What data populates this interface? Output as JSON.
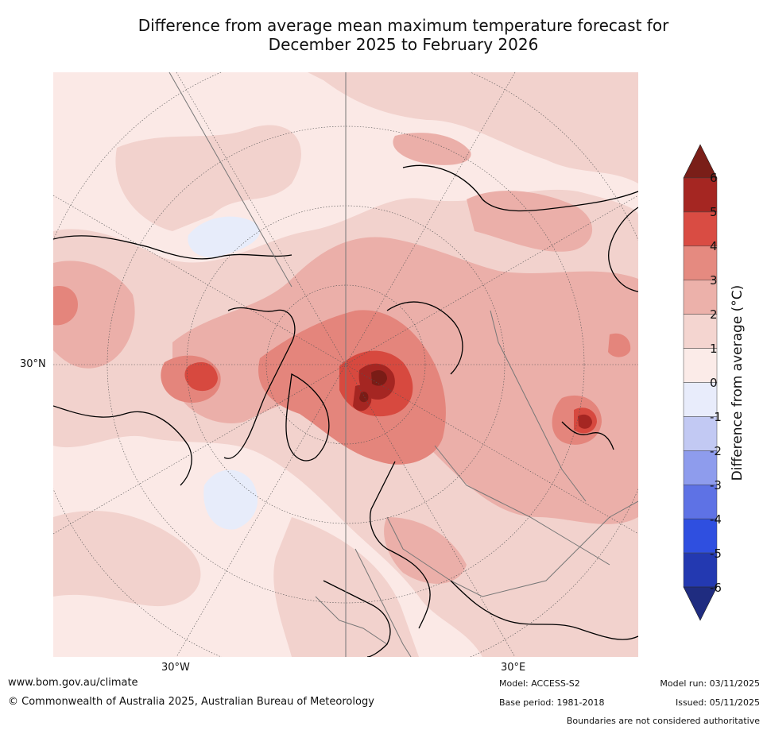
{
  "title": {
    "line1": "Difference from average mean maximum temperature forecast for",
    "line2": "December 2025 to February 2026"
  },
  "map": {
    "projection": "North Polar Stereographic",
    "lat_label": "30°N",
    "lon_labels": [
      "30°W",
      "30°E"
    ],
    "colors": {
      "ocean_base": "#fbe9e6",
      "band_0_1": "#fbeae7",
      "band_1_2": "#f2d2cd",
      "band_2_3": "#ebafa9",
      "band_3_4": "#e4857c",
      "band_4_5": "#d7493f",
      "band_5_6": "#a52622",
      "band_6p": "#7a1c16",
      "band_m1_0": "#e7ecfa",
      "coast": "#000000",
      "border": "#777777",
      "grid": "#444444"
    }
  },
  "colorbar": {
    "title": "Difference from average (°C)",
    "ticks": [
      "6",
      "5",
      "4",
      "3",
      "2",
      "1",
      "0",
      "-1",
      "-2",
      "-3",
      "-4",
      "-5",
      "-6"
    ],
    "bands": [
      {
        "range": "5 to 6",
        "color": "#a52622"
      },
      {
        "range": "4 to 5",
        "color": "#d94c43"
      },
      {
        "range": "3 to 4",
        "color": "#e58a80"
      },
      {
        "range": "2 to 3",
        "color": "#ecb1aa"
      },
      {
        "range": "1 to 2",
        "color": "#f4d5d0"
      },
      {
        "range": "0 to 1",
        "color": "#fbebe8"
      },
      {
        "range": "-1 to 0",
        "color": "#e8ecfb"
      },
      {
        "range": "-2 to -1",
        "color": "#c2c9f3"
      },
      {
        "range": "-3 to -2",
        "color": "#8e9ced"
      },
      {
        "range": "-4 to -3",
        "color": "#5e72e5"
      },
      {
        "range": "-5 to -4",
        "color": "#2f4fe0"
      },
      {
        "range": "-6 to -5",
        "color": "#2339b1"
      }
    ],
    "extend_high_color": "#7a1e18",
    "extend_low_color": "#1f2c80"
  },
  "footer": {
    "url": "www.bom.gov.au/climate",
    "copyright": "© Commonwealth of Australia 2025, Australian Bureau of Meteorology",
    "model": "Model: ACCESS-S2",
    "base_period": "Base period: 1981-2018",
    "model_run": "Model run: 03/11/2025",
    "issued": "Issued: 05/11/2025",
    "disclaimer": "Boundaries are not considered authoritative"
  }
}
